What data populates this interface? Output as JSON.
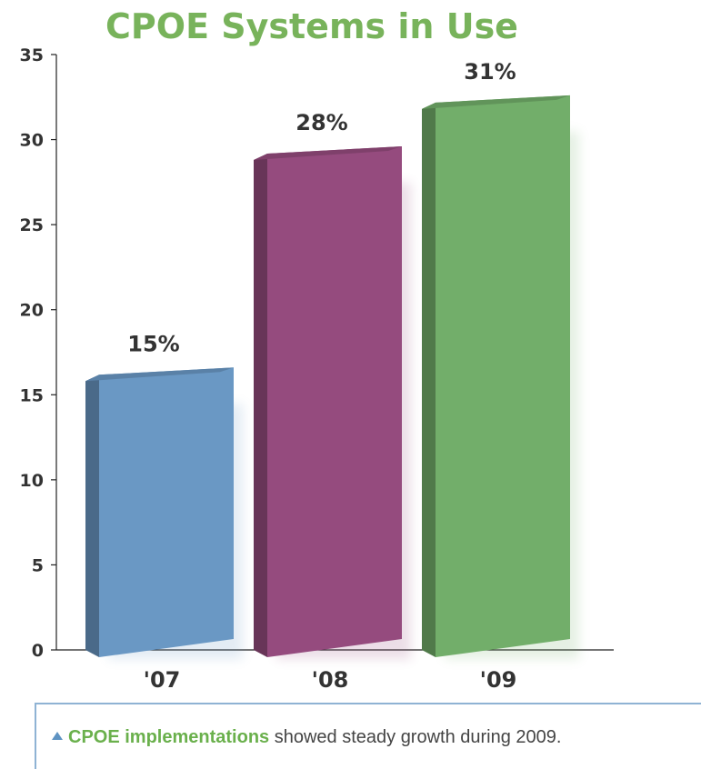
{
  "chart_data": {
    "type": "bar",
    "title": "CPOE Systems in Use",
    "categories": [
      "'07",
      "'08",
      "'09"
    ],
    "values": [
      15,
      28,
      31
    ],
    "value_labels": [
      "15%",
      "28%",
      "31%"
    ],
    "colors": [
      "#6a98c4",
      "#954b7e",
      "#72ae6a"
    ],
    "yticks": [
      0,
      5,
      10,
      15,
      20,
      25,
      30,
      35
    ],
    "ylim": [
      0,
      35
    ],
    "grid": false
  },
  "caption": {
    "highlight": "CPOE implementations",
    "text": " showed steady growth during 2009."
  },
  "colors": {
    "title": "#78b35b",
    "caption_border": "#8fb3d4"
  }
}
